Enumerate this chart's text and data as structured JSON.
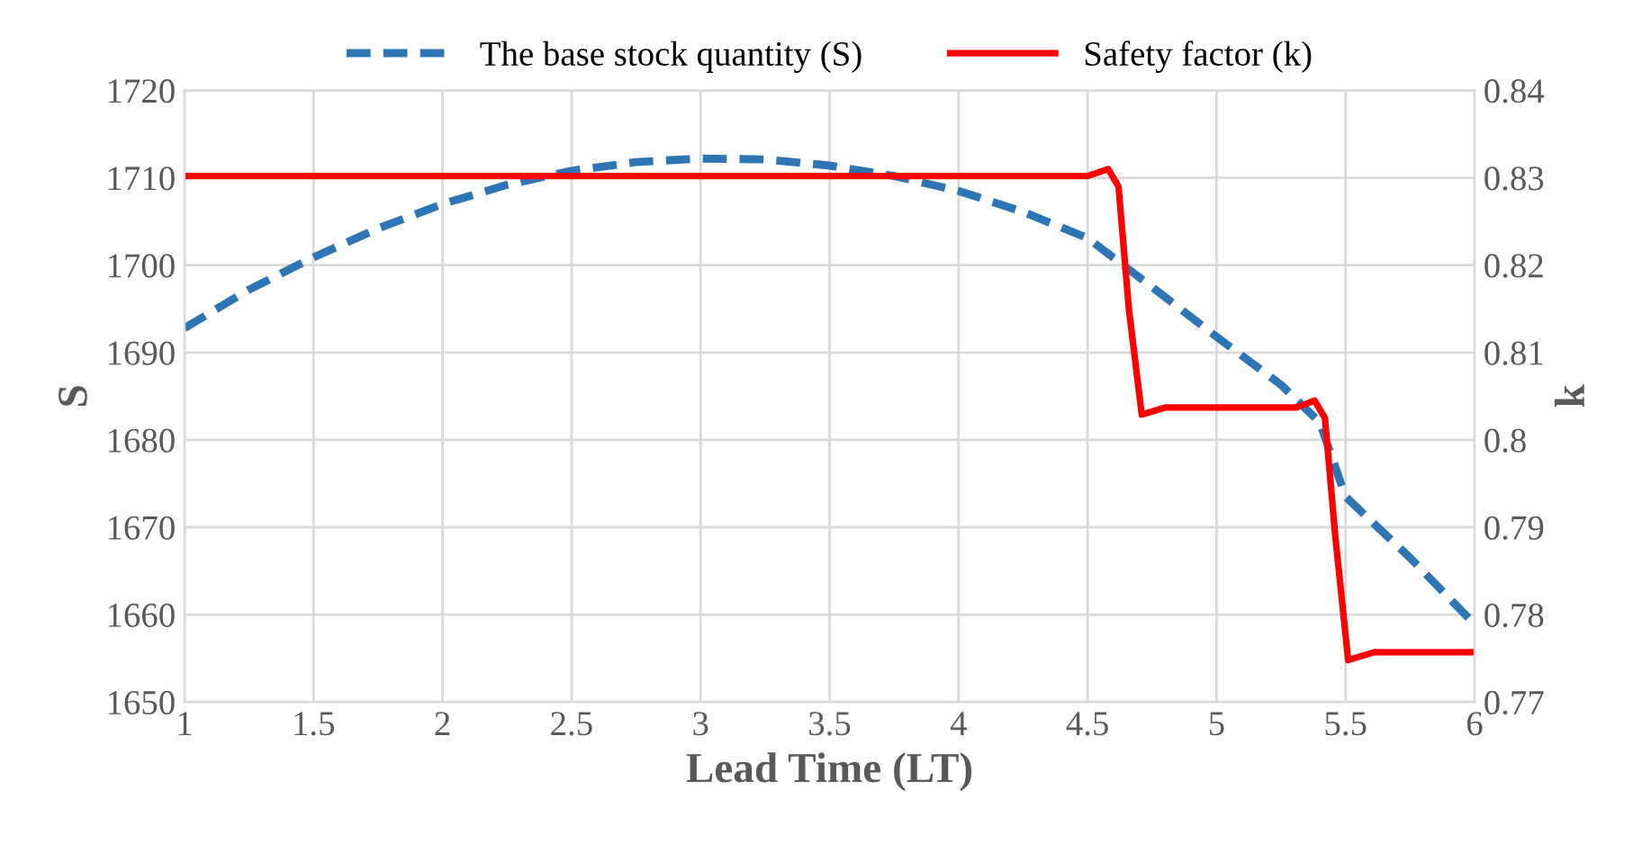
{
  "chart_data": {
    "type": "line",
    "xlabel": "Lead Time (LT)",
    "ylabel": "S",
    "y2label": "k",
    "series": [
      {
        "name": "The base stock quantity (S)",
        "color": "#2e75b6",
        "line_style": "dashed",
        "x": [
          1,
          1.25,
          1.5,
          1.75,
          2,
          2.25,
          2.5,
          2.75,
          3,
          3.25,
          3.5,
          3.75,
          4,
          4.25,
          4.5,
          4.75,
          5,
          5.25,
          5.4,
          5.5,
          5.75,
          6
        ],
        "values": [
          1692.8,
          1697.2,
          1700.9,
          1704.2,
          1707.0,
          1709.2,
          1710.8,
          1711.8,
          1712.2,
          1712.1,
          1711.4,
          1710.2,
          1708.5,
          1706.1,
          1703.1,
          1697.5,
          1691.8,
          1686.3,
          1682.0,
          1673.5,
          1666.5,
          1658.9
        ]
      },
      {
        "name": "Safety factor (k)",
        "color": "#ff0000",
        "line_style": "solid",
        "axis": "y2",
        "x": [
          1,
          4.5,
          4.58,
          4.62,
          4.66,
          4.71,
          4.8,
          5.31,
          5.38,
          5.42,
          5.46,
          5.51,
          5.61,
          6
        ],
        "values": [
          0.8302,
          0.8302,
          0.831,
          0.829,
          0.815,
          0.8029,
          0.8037,
          0.8037,
          0.8045,
          0.8025,
          0.789,
          0.7748,
          0.7757,
          0.7757
        ]
      }
    ],
    "xlim": [
      1,
      6
    ],
    "xticks": [
      1,
      1.5,
      2,
      2.5,
      3,
      3.5,
      4,
      4.5,
      5,
      5.5,
      6
    ],
    "ylim": [
      1650,
      1720
    ],
    "yticks": [
      1650,
      1660,
      1670,
      1680,
      1690,
      1700,
      1710,
      1720
    ],
    "y2lim": [
      0.77,
      0.84
    ],
    "y2ticks": [
      0.77,
      0.78,
      0.79,
      0.8,
      0.81,
      0.82,
      0.83,
      0.84
    ],
    "grid": true,
    "legend": "top",
    "marker": "none"
  }
}
